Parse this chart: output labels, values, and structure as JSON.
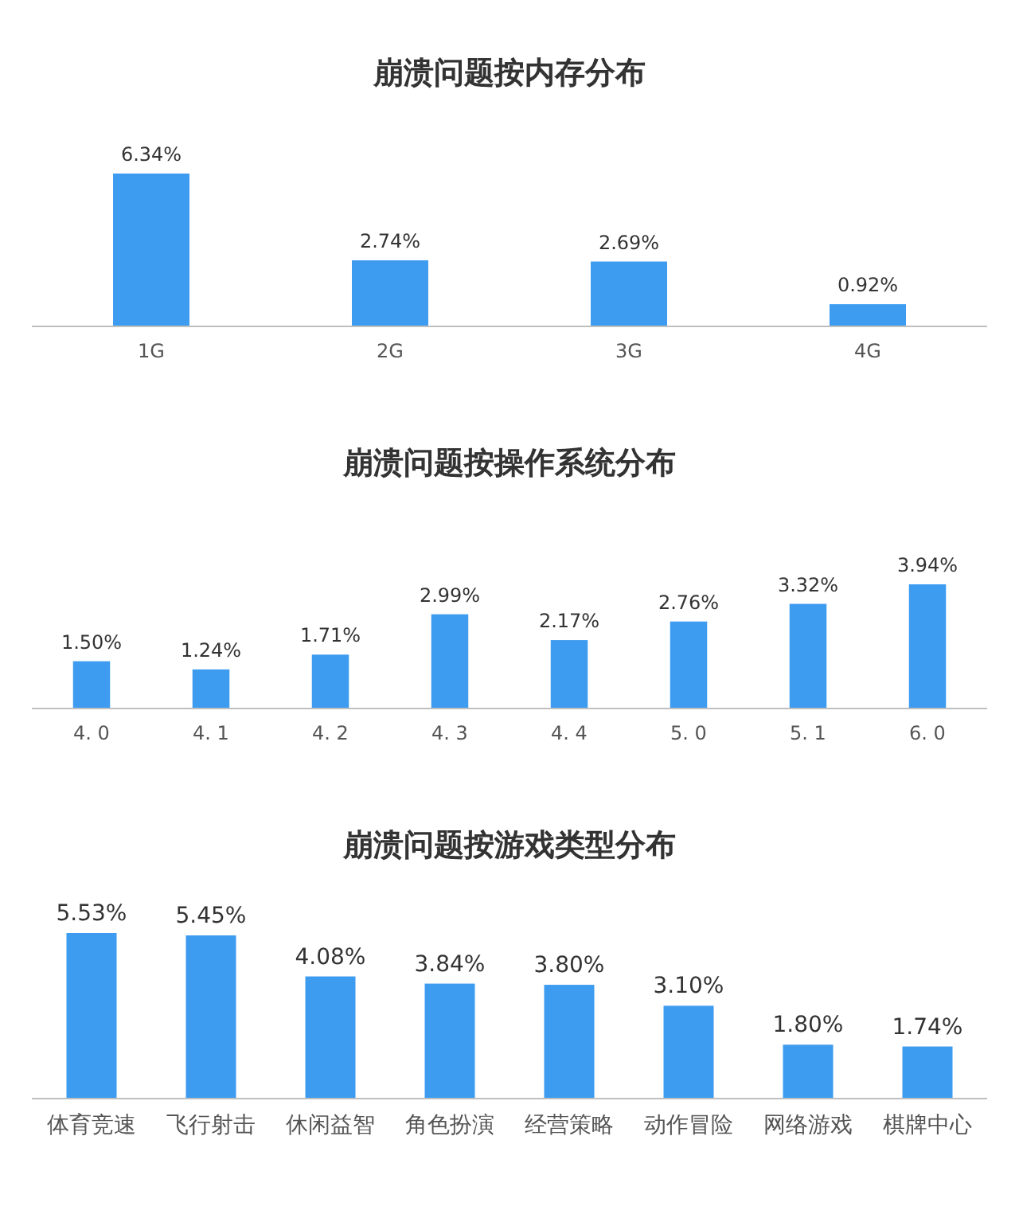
{
  "chart_data": [
    {
      "type": "bar",
      "title": "崩溃问题按内存分布",
      "categories": [
        "1G",
        "2G",
        "3G",
        "4G"
      ],
      "values": [
        6.34,
        2.74,
        2.69,
        0.92
      ],
      "value_labels": [
        "6.34%",
        "2.74%",
        "2.69%",
        "0.92%"
      ],
      "color": "#3d9bf0"
    },
    {
      "type": "bar",
      "title": "崩溃问题按操作系统分布",
      "categories": [
        "4. 0",
        "4. 1",
        "4. 2",
        "4. 3",
        "4. 4",
        "5. 0",
        "5. 1",
        "6. 0"
      ],
      "values": [
        1.5,
        1.24,
        1.71,
        2.99,
        2.17,
        2.76,
        3.32,
        3.94
      ],
      "value_labels": [
        "1.50%",
        "1.24%",
        "1.71%",
        "2.99%",
        "2.17%",
        "2.76%",
        "3.32%",
        "3.94%"
      ],
      "color": "#3d9bf0"
    },
    {
      "type": "bar",
      "title": "崩溃问题按游戏类型分布",
      "categories": [
        "体育竞速",
        "飞行射击",
        "休闲益智",
        "角色扮演",
        "经营策略",
        "动作冒险",
        "网络游戏",
        "棋牌中心"
      ],
      "values": [
        5.53,
        5.45,
        4.08,
        3.84,
        3.8,
        3.1,
        1.8,
        1.74
      ],
      "value_labels": [
        "5.53%",
        "5.45%",
        "4.08%",
        "3.84%",
        "3.80%",
        "3.10%",
        "1.80%",
        "1.74%"
      ],
      "color": "#3d9bf0"
    }
  ]
}
